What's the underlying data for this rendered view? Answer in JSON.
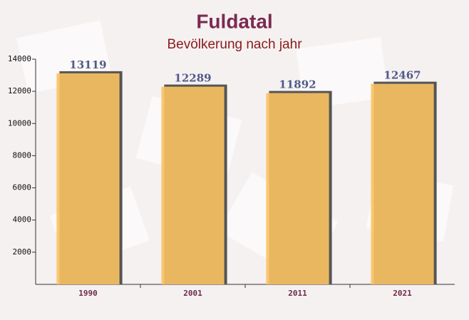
{
  "chart_data": {
    "type": "bar",
    "title": "Fuldatal",
    "subtitle": "Bevölkerung nach jahr",
    "categories": [
      "1990",
      "2001",
      "2011",
      "2021"
    ],
    "values": [
      13119,
      12289,
      11892,
      12467
    ],
    "color": "#fbc263",
    "label_color": "#505a8a",
    "ylim": [
      0,
      14000
    ],
    "yticks": [
      2000,
      4000,
      6000,
      8000,
      10000,
      12000,
      14000
    ],
    "grid": false
  }
}
